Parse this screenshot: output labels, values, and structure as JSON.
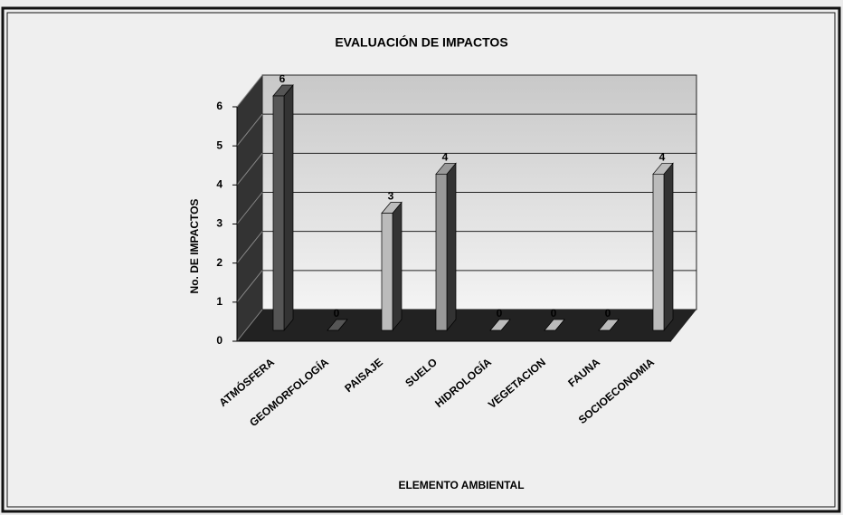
{
  "chart_data": {
    "type": "bar3d",
    "title": "EVALUACIÓN DE IMPACTOS",
    "x_label": "ELEMENTO AMBIENTAL",
    "y_label": "No. DE IMPACTOS",
    "categories": [
      "ATMÓSFERA",
      "GEOMORFOLOGÍA",
      "PAISAJE",
      "SUELO",
      "HIDROLOGÍA",
      "VEGETACION",
      "FAUNA",
      "SOCIOECONOMIA"
    ],
    "values": [
      6,
      0,
      3,
      4,
      0,
      0,
      0,
      4
    ],
    "colors": [
      "#555555",
      "#555555",
      "#bbbbbb",
      "#999999",
      "#bbbbbb",
      "#bbbbbb",
      "#bbbbbb",
      "#bbbbbb"
    ],
    "ylim": [
      0,
      6
    ],
    "yticks": [
      0,
      1,
      2,
      3,
      4,
      5,
      6
    ],
    "grid": true
  }
}
